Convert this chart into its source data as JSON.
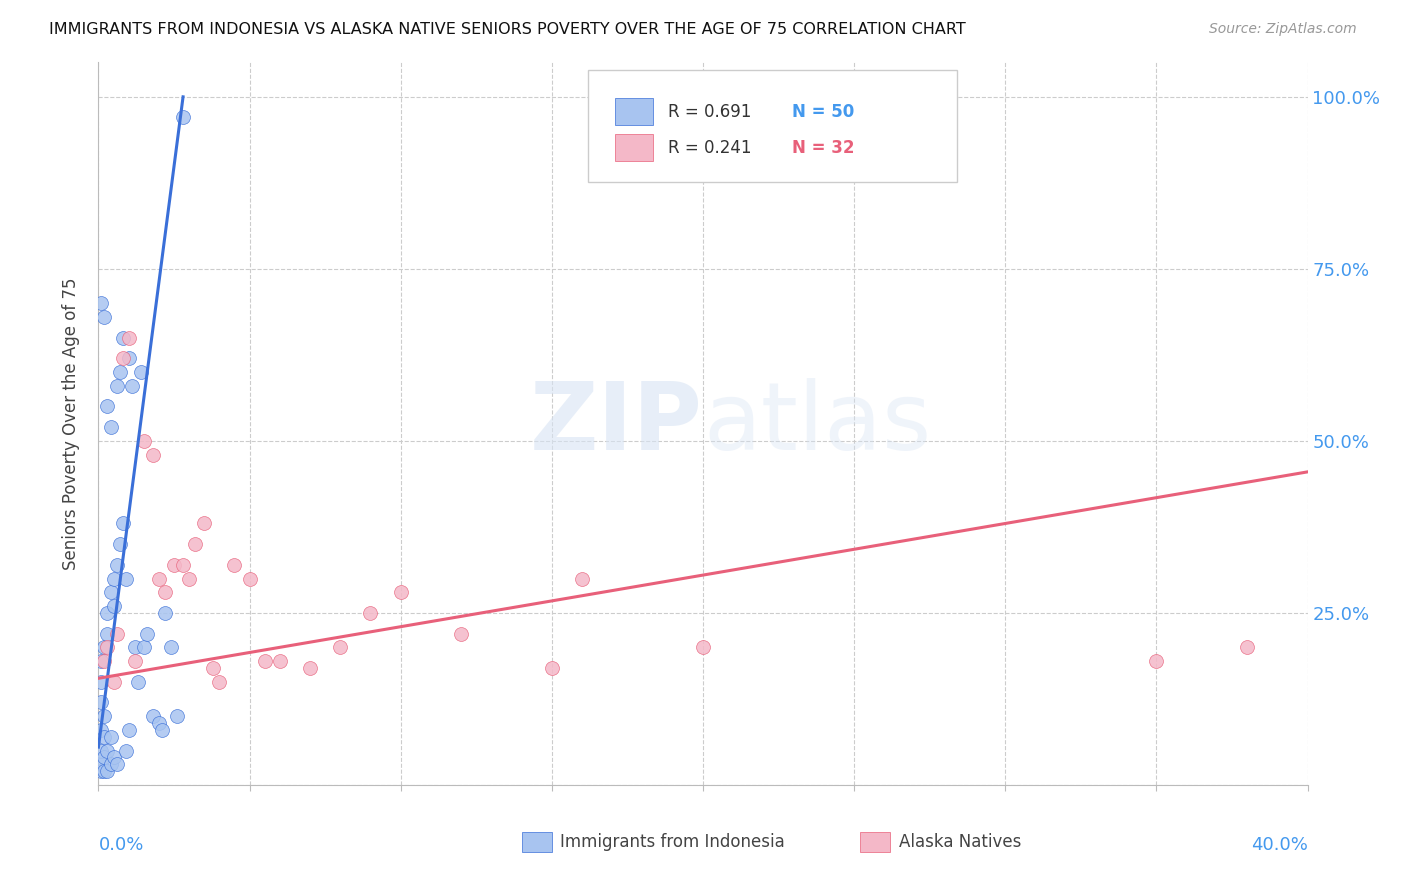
{
  "title": "IMMIGRANTS FROM INDONESIA VS ALASKA NATIVE SENIORS POVERTY OVER THE AGE OF 75 CORRELATION CHART",
  "source": "Source: ZipAtlas.com",
  "ylabel": "Seniors Poverty Over the Age of 75",
  "watermark": "ZIPatlas",
  "blue_color": "#a8c4f0",
  "pink_color": "#f4b8c8",
  "blue_line_color": "#3a6fd8",
  "pink_line_color": "#e8607a",
  "xlim": [
    0.0,
    0.4
  ],
  "ylim": [
    0.0,
    1.05
  ],
  "blue_scatter_x": [
    0.001,
    0.001,
    0.001,
    0.001,
    0.001,
    0.001,
    0.001,
    0.002,
    0.002,
    0.002,
    0.002,
    0.002,
    0.003,
    0.003,
    0.003,
    0.003,
    0.004,
    0.004,
    0.004,
    0.005,
    0.005,
    0.005,
    0.006,
    0.006,
    0.006,
    0.007,
    0.007,
    0.008,
    0.008,
    0.009,
    0.009,
    0.01,
    0.01,
    0.011,
    0.012,
    0.013,
    0.014,
    0.015,
    0.016,
    0.018,
    0.02,
    0.021,
    0.022,
    0.024,
    0.026,
    0.028,
    0.001,
    0.002,
    0.003,
    0.004
  ],
  "blue_scatter_y": [
    0.02,
    0.03,
    0.05,
    0.08,
    0.12,
    0.15,
    0.18,
    0.02,
    0.04,
    0.07,
    0.1,
    0.2,
    0.02,
    0.05,
    0.22,
    0.25,
    0.03,
    0.07,
    0.28,
    0.04,
    0.26,
    0.3,
    0.03,
    0.32,
    0.58,
    0.35,
    0.6,
    0.38,
    0.65,
    0.05,
    0.3,
    0.08,
    0.62,
    0.58,
    0.2,
    0.15,
    0.6,
    0.2,
    0.22,
    0.1,
    0.09,
    0.08,
    0.25,
    0.2,
    0.1,
    0.97,
    0.7,
    0.68,
    0.55,
    0.52
  ],
  "pink_scatter_x": [
    0.002,
    0.003,
    0.005,
    0.006,
    0.008,
    0.01,
    0.012,
    0.015,
    0.018,
    0.02,
    0.022,
    0.025,
    0.028,
    0.03,
    0.032,
    0.035,
    0.038,
    0.04,
    0.045,
    0.05,
    0.055,
    0.06,
    0.07,
    0.08,
    0.09,
    0.1,
    0.12,
    0.15,
    0.16,
    0.2,
    0.35,
    0.38
  ],
  "pink_scatter_y": [
    0.18,
    0.2,
    0.15,
    0.22,
    0.62,
    0.65,
    0.18,
    0.5,
    0.48,
    0.3,
    0.28,
    0.32,
    0.32,
    0.3,
    0.35,
    0.38,
    0.17,
    0.15,
    0.32,
    0.3,
    0.18,
    0.18,
    0.17,
    0.2,
    0.25,
    0.28,
    0.22,
    0.17,
    0.3,
    0.2,
    0.18,
    0.2
  ],
  "blue_line_x": [
    0.0,
    0.028
  ],
  "blue_line_y": [
    0.055,
    1.0
  ],
  "pink_line_x": [
    0.0,
    0.4
  ],
  "pink_line_y": [
    0.155,
    0.455
  ]
}
